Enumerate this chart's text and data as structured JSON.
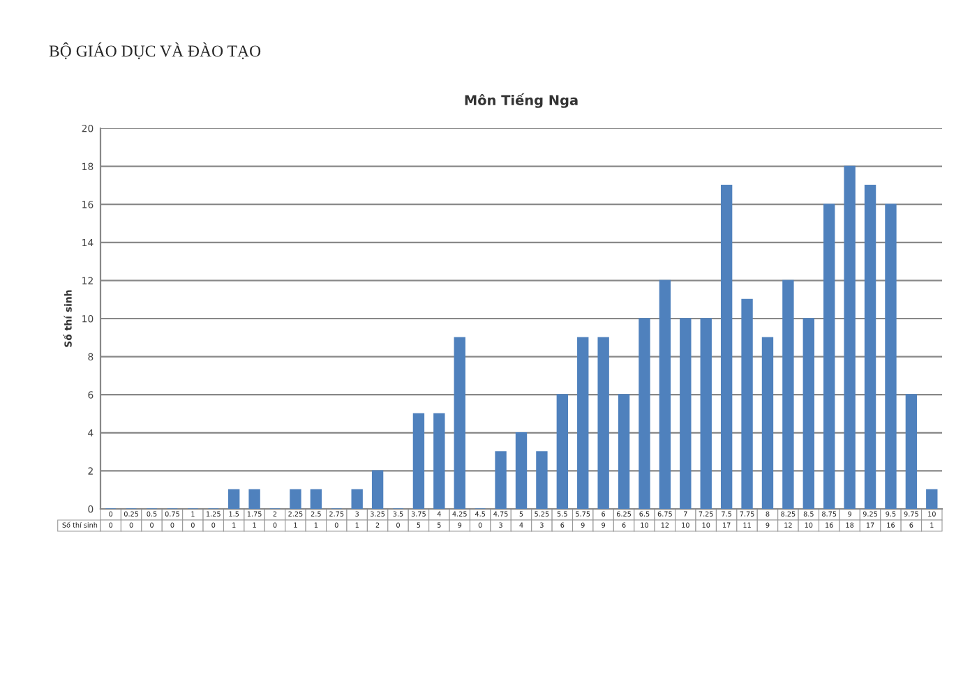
{
  "chart_data": {
    "type": "bar",
    "title": "Môn Tiếng Nga",
    "ylabel": "Số thí sinh",
    "annotations": [
      "BỘ GIÁO DỤC VÀ ĐÀO TẠO"
    ],
    "categories": [
      "0",
      "0.25",
      "0.5",
      "0.75",
      "1",
      "1.25",
      "1.5",
      "1.75",
      "2",
      "2.25",
      "2.5",
      "2.75",
      "3",
      "3.25",
      "3.5",
      "3.75",
      "4",
      "4.25",
      "4.5",
      "4.75",
      "5",
      "5.25",
      "5.5",
      "5.75",
      "6",
      "6.25",
      "6.5",
      "6.75",
      "7",
      "7.25",
      "7.5",
      "7.75",
      "8",
      "8.25",
      "8.5",
      "8.75",
      "9",
      "9.25",
      "9.5",
      "9.75",
      "10"
    ],
    "series": [
      {
        "name": "Số thí sinh",
        "color": "#4f81bd",
        "values": [
          0,
          0,
          0,
          0,
          0,
          0,
          1,
          1,
          0,
          1,
          1,
          0,
          1,
          2,
          0,
          5,
          5,
          9,
          0,
          3,
          4,
          3,
          6,
          9,
          9,
          6,
          10,
          12,
          10,
          10,
          17,
          11,
          9,
          12,
          10,
          16,
          18,
          17,
          16,
          6,
          1
        ]
      }
    ],
    "ylim": [
      0,
      20
    ],
    "yticks": [
      0,
      2,
      4,
      6,
      8,
      10,
      12,
      14,
      16,
      18,
      20
    ],
    "grid": "y",
    "data_labels": true,
    "legend": "bottom"
  }
}
